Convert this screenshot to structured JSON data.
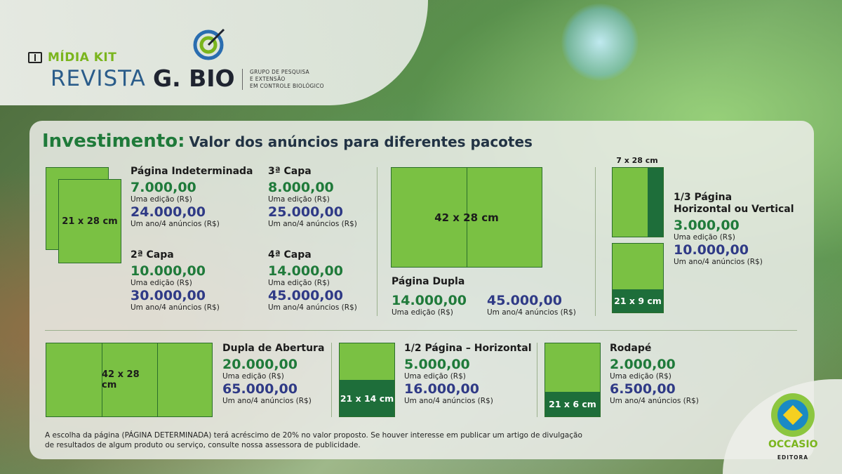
{
  "header": {
    "kit_label": "MÍDIA KIT",
    "revista": "REVISTA",
    "gbio": "G. BIO",
    "group_lines": [
      "GRUPO DE PESQUISA",
      "E EXTENSÃO",
      "EM CONTROLE BIOLÓGICO"
    ]
  },
  "title": {
    "main": "Investimento:",
    "sub": "Valor dos anúncios para diferentes pacotes"
  },
  "sizes": {
    "s1": "21 x 28 cm",
    "s2": "42 x 28 cm",
    "s3": "7 x 28 cm",
    "s4": "21 x 9 cm",
    "s5": "42 x 28 cm",
    "s6": "21 x 14 cm",
    "s7": "21 x 6 cm"
  },
  "packages": [
    {
      "name": "Página Indeterminada",
      "single": "7.000,00",
      "single_label": "Uma edição (R$)",
      "year": "24.000,00",
      "year_label": "Um ano/4 anúncios (R$)"
    },
    {
      "name": "3ª Capa",
      "single": "8.000,00",
      "single_label": "Uma edição (R$)",
      "year": "25.000,00",
      "year_label": "Um ano/4 anúncios (R$)"
    },
    {
      "name": "2ª Capa",
      "single": "10.000,00",
      "single_label": "Uma edição (R$)",
      "year": "30.000,00",
      "year_label": "Um ano/4 anúncios (R$)"
    },
    {
      "name": "4ª Capa",
      "single": "14.000,00",
      "single_label": "Uma edição (R$)",
      "year": "45.000,00",
      "year_label": "Um ano/4 anúncios (R$)"
    },
    {
      "name": "Página Dupla",
      "single": "14.000,00",
      "single_label": "Uma edição (R$)",
      "year": "45.000,00",
      "year_label": "Um ano/4 anúncios (R$)"
    },
    {
      "name_line1": "1/3 Página",
      "name_line2": "Horizontal ou Vertical",
      "single": "3.000,00",
      "single_label": "Uma edição (R$)",
      "year": "10.000,00",
      "year_label": "Um ano/4 anúncios (R$)"
    },
    {
      "name": "Dupla de Abertura",
      "single": "20.000,00",
      "single_label": "Uma edição (R$)",
      "year": "65.000,00",
      "year_label": "Um ano/4 anúncios (R$)"
    },
    {
      "name": "1/2 Página – Horizontal",
      "single": "5.000,00",
      "single_label": "Uma edição (R$)",
      "year": "16.000,00",
      "year_label": "Um ano/4 anúncios (R$)"
    },
    {
      "name": "Rodapé",
      "single": "2.000,00",
      "single_label": "Uma edição (R$)",
      "year": "6.500,00",
      "year_label": "Um ano/4 anúncios (R$)"
    }
  ],
  "footer": {
    "line1": "A escolha da página (PÁGINA DETERMINADA) terá acréscimo de 20% no valor proposto. Se houver interesse em publicar um artigo de divulgação",
    "line2": "de resultados de algum produto ou serviço, consulte nossa assessora de publicidade."
  },
  "publisher": {
    "name": "OCCASIO",
    "sub": "EDITORA"
  }
}
